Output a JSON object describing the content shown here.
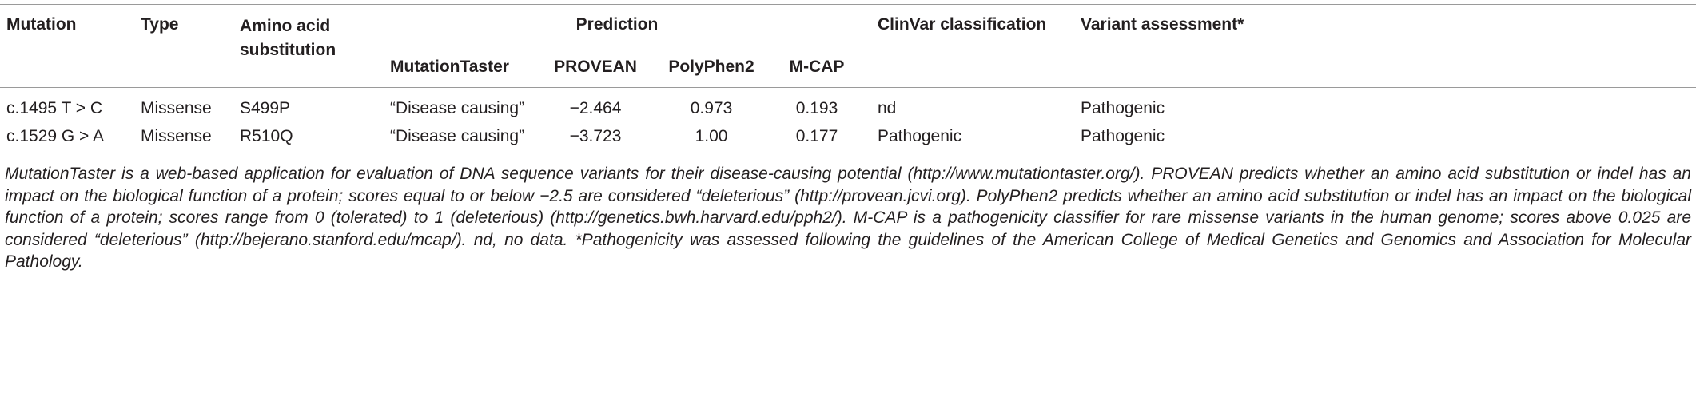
{
  "table": {
    "header": [
      "Mutation",
      "Type",
      "Amino acid substitution",
      "Prediction",
      "ClinVar classification",
      "Variant assessment*"
    ],
    "subheader": [
      "MutationTaster",
      "PROVEAN",
      "PolyPhen2",
      "M-CAP"
    ],
    "rows": [
      [
        "c.1495 T > C",
        "Missense",
        "S499P",
        "“Disease causing”",
        "−2.464",
        "0.973",
        "0.193",
        "nd",
        "Pathogenic"
      ],
      [
        "c.1529 G > A",
        "Missense",
        "R510Q",
        "“Disease causing”",
        "−3.723",
        "1.00",
        "0.177",
        "Pathogenic",
        "Pathogenic"
      ]
    ],
    "footnote": "MutationTaster is a web-based application for evaluation of DNA sequence variants for their disease-causing potential (http://www.mutationtaster.org/). PROVEAN predicts whether an amino acid substitution or indel has an impact on the biological function of a protein; scores equal to or below −2.5 are considered “deleterious” (http://provean.jcvi.org). PolyPhen2 predicts whether an amino acid substitution or indel has an impact on the biological function of a protein; scores range from 0 (tolerated) to 1 (deleterious) (http://genetics.bwh.harvard.edu/pph2/). M-CAP is a pathogenicity classifier for rare missense variants in the human genome; scores above 0.025 are considered “deleterious” (http://bejerano.stanford.edu/mcap/). nd, no data. *Pathogenicity was assessed following the guidelines of the American College of Medical Genetics and Genomics and Association for Molecular Pathology."
  }
}
